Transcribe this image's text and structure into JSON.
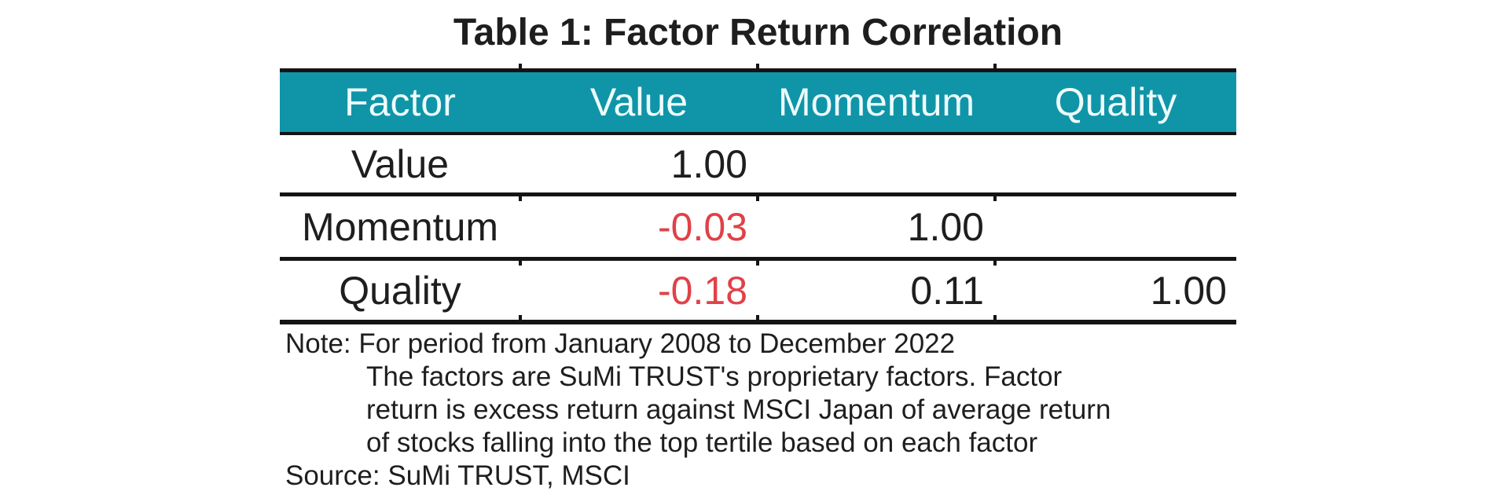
{
  "title": "Table 1: Factor Return Correlation",
  "table": {
    "columns": [
      "Factor",
      "Value",
      "Momentum",
      "Quality"
    ],
    "rows": [
      [
        "Value",
        "1.00",
        "",
        ""
      ],
      [
        "Momentum",
        "-0.03",
        "1.00",
        ""
      ],
      [
        "Quality",
        "-0.18",
        "0.11",
        "1.00"
      ]
    ]
  },
  "note": {
    "line1": "Note: For period from January 2008 to December 2022",
    "continuation": [
      "The factors are SuMi TRUST's proprietary factors. Factor",
      "return is excess return against MSCI Japan of average return",
      "of stocks falling into the top tertile based on each factor"
    ],
    "source": "Source: SuMi TRUST, MSCI"
  },
  "colors": {
    "header_bg": "#1095a8",
    "header_text": "#eefcfd",
    "text": "#1e1e1e",
    "negative": "#e04147",
    "rule": "#141414",
    "background": "#ffffff"
  }
}
